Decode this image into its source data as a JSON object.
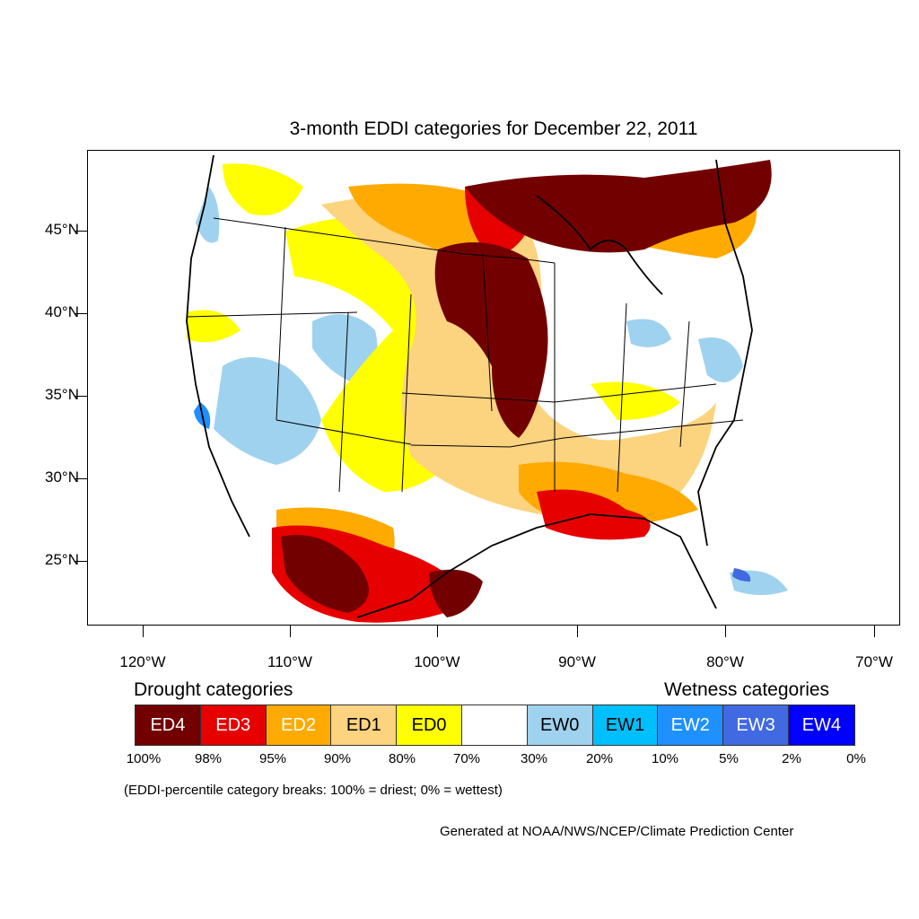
{
  "title": "3-month EDDI categories for December 22, 2011",
  "map": {
    "lat_labels": [
      "45°N",
      "40°N",
      "35°N",
      "30°N",
      "25°N"
    ],
    "lon_labels": [
      "120°W",
      "110°W",
      "100°W",
      "90°W",
      "80°W",
      "70°W"
    ]
  },
  "legend": {
    "drought_heading": "Drought categories",
    "wetness_heading": "Wetness categories",
    "categories": [
      {
        "label": "ED4",
        "color": "#730000",
        "text_color": "#ffffff"
      },
      {
        "label": "ED3",
        "color": "#e60000",
        "text_color": "#ffffff"
      },
      {
        "label": "ED2",
        "color": "#ffaa00",
        "text_color": "#ffffff"
      },
      {
        "label": "ED1",
        "color": "#fcd37f",
        "text_color": "#000000"
      },
      {
        "label": "ED0",
        "color": "#ffff00",
        "text_color": "#000000"
      },
      {
        "label": "",
        "color": "#ffffff",
        "text_color": "#000000"
      },
      {
        "label": "EW0",
        "color": "#9fd2ef",
        "text_color": "#000000"
      },
      {
        "label": "EW1",
        "color": "#00bfff",
        "text_color": "#000000"
      },
      {
        "label": "EW2",
        "color": "#1e90ff",
        "text_color": "#ffffff"
      },
      {
        "label": "EW3",
        "color": "#4169e1",
        "text_color": "#ffffff"
      },
      {
        "label": "EW4",
        "color": "#0000ff",
        "text_color": "#ffffff"
      }
    ],
    "breaks": [
      "100%",
      "98%",
      "95%",
      "90%",
      "80%",
      "70%",
      "30%",
      "20%",
      "10%",
      "5%",
      "2%",
      "0%"
    ]
  },
  "note": "(EDDI-percentile category breaks: 100% = driest; 0% = wettest)",
  "credit": "Generated at NOAA/NWS/NCEP/Climate Prediction Center"
}
